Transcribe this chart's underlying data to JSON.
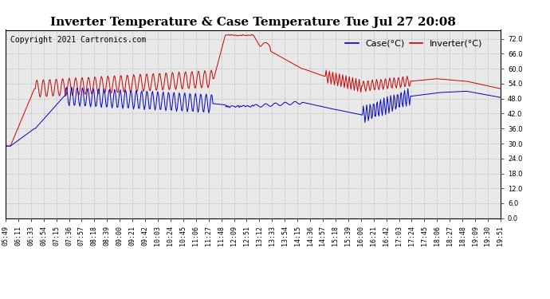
{
  "title": "Inverter Temperature & Case Temperature Tue Jul 27 20:08",
  "copyright": "Copyright 2021 Cartronics.com",
  "legend_case": "Case(°C)",
  "legend_inverter": "Inverter(°C)",
  "ylim": [
    0.0,
    75.6
  ],
  "yticks": [
    0.0,
    6.0,
    12.0,
    18.0,
    24.0,
    30.0,
    36.0,
    42.0,
    48.0,
    54.0,
    60.0,
    66.0,
    72.0
  ],
  "color_case": "#0000cc",
  "color_inverter": "#cc0000",
  "bg_color": "#ffffff",
  "plot_bg": "#e8e8e8",
  "grid_color": "#bbbbbb",
  "title_fontsize": 11,
  "tick_fontsize": 6,
  "copyright_fontsize": 7,
  "legend_fontsize": 8,
  "x_labels": [
    "05:49",
    "06:11",
    "06:33",
    "06:54",
    "07:15",
    "07:36",
    "07:57",
    "08:18",
    "08:39",
    "09:00",
    "09:21",
    "09:42",
    "10:03",
    "10:24",
    "10:45",
    "11:06",
    "11:27",
    "11:48",
    "12:09",
    "12:51",
    "13:12",
    "13:33",
    "13:54",
    "14:15",
    "14:36",
    "14:57",
    "15:18",
    "15:39",
    "16:00",
    "16:21",
    "16:42",
    "17:03",
    "17:24",
    "17:45",
    "18:06",
    "18:27",
    "18:48",
    "19:09",
    "19:30",
    "19:51"
  ]
}
